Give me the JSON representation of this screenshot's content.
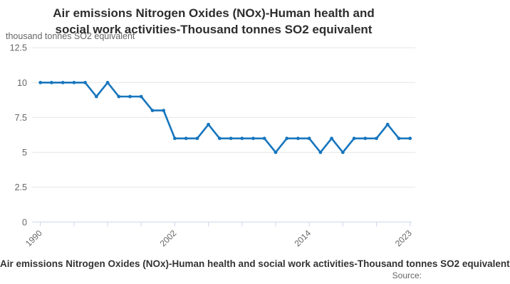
{
  "header": {
    "title_lines": [
      "Air emissions Nitrogen Oxides (NOx)-Human health and",
      "social work activities-Thousand tonnes SO2 equivalent"
    ]
  },
  "legend": {
    "label": "Air emissions Nitrogen Oxides (NOx)-Human health and social work activities-Thousand tonnes SO2 equivalent"
  },
  "footer": {
    "source_label": "Source:"
  },
  "colors": {
    "line": "#1776bd",
    "marker": "#1776bd",
    "grid": "#e6e6e6",
    "axis": "#ccd6eb",
    "tick_label": "#666666",
    "title": "#2d2d2d",
    "legend_text": "#333333"
  },
  "chart_data": {
    "type": "line",
    "title": "Air emissions Nitrogen Oxides (NOx)-Human health and social work activities-Thousand tonnes SO2 equivalent",
    "ylabel": "thousand tonnes SO2 equivalent",
    "xlabel": "",
    "x": [
      1990,
      1991,
      1992,
      1993,
      1994,
      1995,
      1996,
      1997,
      1998,
      1999,
      2000,
      2001,
      2002,
      2003,
      2004,
      2005,
      2006,
      2007,
      2008,
      2009,
      2010,
      2011,
      2012,
      2013,
      2014,
      2015,
      2016,
      2017,
      2018,
      2019,
      2020,
      2021,
      2022,
      2023
    ],
    "values": [
      10,
      10,
      10,
      10,
      10,
      9,
      10,
      9,
      9,
      9,
      8,
      8,
      6,
      6,
      6,
      7,
      6,
      6,
      6,
      6,
      6,
      5,
      6,
      6,
      6,
      5,
      6,
      5,
      6,
      6,
      6,
      7,
      6,
      6
    ],
    "ylim": [
      0,
      12.5
    ],
    "y_ticks": [
      0,
      2.5,
      5,
      7.5,
      10,
      12.5
    ],
    "y_tick_labels": [
      "0",
      "2.5",
      "5",
      "7.5",
      "10",
      "12.5"
    ],
    "x_tick_interval": 3,
    "x_labeled_ticks": [
      1990,
      2002,
      2014,
      2023
    ],
    "grid": "horizontal",
    "legend_position": "bottom",
    "markers": true
  }
}
